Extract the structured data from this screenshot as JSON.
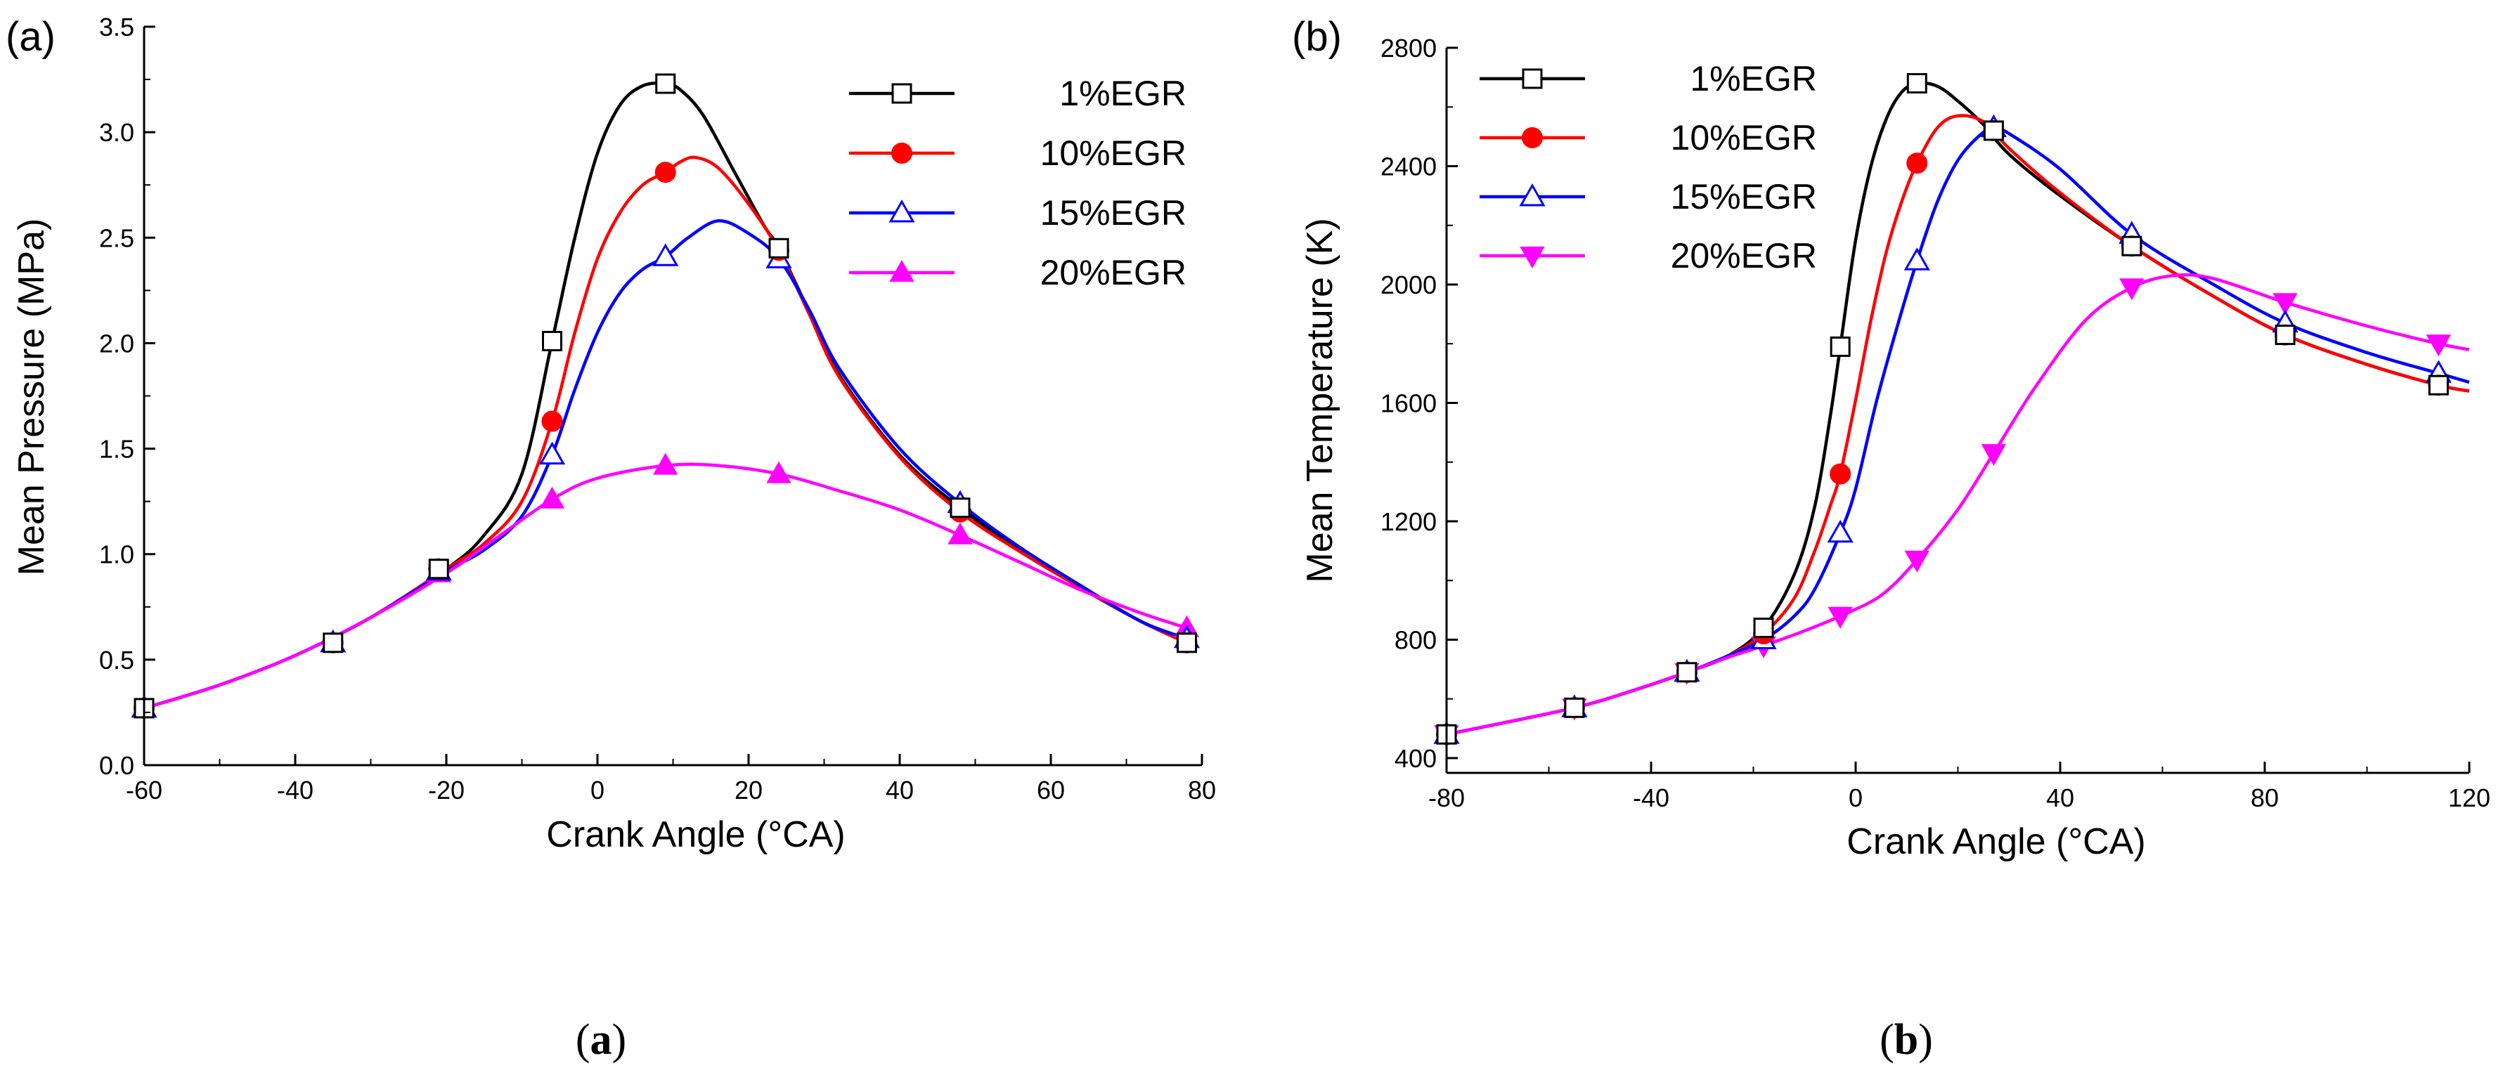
{
  "chart_data": [
    {
      "type": "line",
      "panel_label": "(a)",
      "caption_open": "(",
      "caption_letter": "a",
      "caption_close": ")",
      "xlabel": "Crank Angle (°CA)",
      "ylabel": "Mean Pressure (MPa)",
      "xlim": [
        -60,
        80
      ],
      "ylim": [
        0.0,
        3.5
      ],
      "xticks": [
        "-60",
        "-40",
        "-20",
        "0",
        "20",
        "40",
        "60",
        "80"
      ],
      "yticks": [
        "0.0",
        "0.5",
        "1.0",
        "1.5",
        "2.0",
        "2.5",
        "3.0",
        "3.5"
      ],
      "legend_position": "top-right",
      "series": [
        {
          "name": "1%EGR",
          "color": "#000000",
          "marker": "open-square",
          "x": [
            -60,
            -50,
            -40,
            -30,
            -20,
            -15,
            -10,
            -6,
            -3,
            0,
            3,
            6,
            9,
            11,
            14,
            18,
            22,
            24,
            28,
            32,
            40,
            48,
            56,
            64,
            72,
            78
          ],
          "y": [
            0.27,
            0.38,
            0.52,
            0.7,
            0.93,
            1.09,
            1.38,
            2.01,
            2.5,
            2.9,
            3.13,
            3.22,
            3.23,
            3.2,
            3.08,
            2.82,
            2.56,
            2.45,
            2.15,
            1.85,
            1.47,
            1.22,
            1.02,
            0.84,
            0.68,
            0.58
          ],
          "markers_x": [
            -60,
            -35,
            -21,
            -6,
            9,
            24,
            48,
            78
          ],
          "markers_y": [
            0.27,
            0.58,
            0.93,
            2.01,
            3.23,
            2.45,
            1.22,
            0.58
          ]
        },
        {
          "name": "10%EGR",
          "color": "#ff0000",
          "marker": "filled-circle",
          "x": [
            -60,
            -50,
            -40,
            -30,
            -20,
            -15,
            -10,
            -6,
            -3,
            0,
            3,
            6,
            9,
            11,
            13,
            16,
            20,
            24,
            28,
            32,
            40,
            48,
            56,
            64,
            72,
            78
          ],
          "y": [
            0.27,
            0.38,
            0.52,
            0.7,
            0.93,
            1.05,
            1.25,
            1.63,
            2.05,
            2.4,
            2.62,
            2.75,
            2.81,
            2.86,
            2.88,
            2.83,
            2.66,
            2.44,
            2.14,
            1.84,
            1.46,
            1.2,
            1.01,
            0.84,
            0.68,
            0.58
          ],
          "markers_x": [
            -60,
            -35,
            -21,
            -6,
            9,
            24,
            48,
            78
          ],
          "markers_y": [
            0.27,
            0.58,
            0.93,
            1.63,
            2.81,
            2.44,
            1.2,
            0.58
          ]
        },
        {
          "name": "15%EGR",
          "color": "#0000ff",
          "marker": "open-triangle",
          "x": [
            -60,
            -50,
            -40,
            -30,
            -20,
            -15,
            -10,
            -6,
            -3,
            0,
            3,
            6,
            9,
            12,
            16,
            20,
            24,
            28,
            32,
            40,
            48,
            56,
            64,
            72,
            78
          ],
          "y": [
            0.27,
            0.38,
            0.52,
            0.7,
            0.92,
            1.02,
            1.18,
            1.47,
            1.78,
            2.05,
            2.24,
            2.35,
            2.41,
            2.5,
            2.58,
            2.52,
            2.4,
            2.16,
            1.88,
            1.5,
            1.24,
            1.03,
            0.85,
            0.68,
            0.6
          ],
          "markers_x": [
            -60,
            -35,
            -21,
            -6,
            9,
            24,
            48,
            78
          ],
          "markers_y": [
            0.27,
            0.58,
            0.92,
            1.47,
            2.41,
            2.4,
            1.24,
            0.6
          ]
        },
        {
          "name": "20%EGR",
          "color": "#ff00ff",
          "marker": "filled-triangle",
          "x": [
            -60,
            -50,
            -40,
            -30,
            -20,
            -14,
            -6,
            0,
            9,
            16,
            24,
            32,
            40,
            48,
            56,
            64,
            72,
            78
          ],
          "y": [
            0.27,
            0.38,
            0.52,
            0.7,
            0.91,
            1.06,
            1.26,
            1.36,
            1.42,
            1.42,
            1.38,
            1.3,
            1.21,
            1.09,
            0.96,
            0.83,
            0.72,
            0.65
          ],
          "markers_x": [
            -60,
            -35,
            -21,
            -6,
            9,
            24,
            48,
            78
          ],
          "markers_y": [
            0.27,
            0.58,
            0.91,
            1.26,
            1.42,
            1.38,
            1.09,
            0.65
          ]
        }
      ]
    },
    {
      "type": "line",
      "panel_label": "(b)",
      "caption_open": "(",
      "caption_letter": "b",
      "caption_close": ")",
      "xlabel": "Crank Angle (°CA)",
      "ylabel": "Mean Temperature (K)",
      "xlim": [
        -80,
        120
      ],
      "ylim": [
        350,
        2800
      ],
      "xticks": [
        "-80",
        "-40",
        "0",
        "40",
        "80",
        "120"
      ],
      "ytick_values": [
        400,
        800,
        1200,
        1600,
        2000,
        2400,
        2800
      ],
      "yticks": [
        "400",
        "800",
        "1200",
        "1600",
        "2000",
        "2400",
        "2800"
      ],
      "legend_position": "top-left",
      "series": [
        {
          "name": "1%EGR",
          "color": "#000000",
          "marker": "open-square",
          "x": [
            -80,
            -70,
            -55,
            -45,
            -33,
            -25,
            -18,
            -12,
            -8,
            -5,
            -3,
            0,
            3,
            6,
            9,
            12,
            16,
            20,
            25,
            30,
            40,
            54,
            70,
            84,
            100,
            114,
            120
          ],
          "y": [
            480,
            515,
            570,
            620,
            690,
            745,
            840,
            1020,
            1250,
            1550,
            1790,
            2150,
            2400,
            2560,
            2650,
            2680,
            2670,
            2620,
            2540,
            2440,
            2300,
            2130,
            1960,
            1830,
            1730,
            1660,
            1640
          ],
          "markers_x": [
            -80,
            -55,
            -33,
            -18,
            -3,
            12,
            27,
            54,
            84,
            114
          ],
          "markers_y": [
            480,
            570,
            690,
            840,
            1790,
            2680,
            2520,
            2130,
            1830,
            1660
          ]
        },
        {
          "name": "10%EGR",
          "color": "#ff0000",
          "marker": "filled-circle",
          "x": [
            -80,
            -70,
            -55,
            -45,
            -33,
            -25,
            -18,
            -12,
            -8,
            -5,
            -3,
            0,
            3,
            6,
            9,
            12,
            16,
            20,
            25,
            30,
            40,
            54,
            70,
            84,
            100,
            114,
            120
          ],
          "y": [
            480,
            515,
            570,
            620,
            690,
            745,
            820,
            940,
            1100,
            1250,
            1360,
            1610,
            1880,
            2110,
            2280,
            2410,
            2530,
            2570,
            2550,
            2460,
            2310,
            2130,
            1960,
            1830,
            1730,
            1660,
            1640
          ],
          "markers_x": [
            -80,
            -55,
            -33,
            -18,
            -3,
            12,
            27,
            54,
            84,
            114
          ],
          "markers_y": [
            480,
            570,
            690,
            820,
            1360,
            2410,
            2520,
            2130,
            1830,
            1660
          ]
        },
        {
          "name": "15%EGR",
          "color": "#0000ff",
          "marker": "open-triangle",
          "x": [
            -80,
            -70,
            -55,
            -45,
            -33,
            -25,
            -18,
            -12,
            -8,
            -3,
            0,
            4,
            8,
            12,
            16,
            20,
            24,
            27,
            30,
            40,
            54,
            70,
            84,
            100,
            114,
            120
          ],
          "y": [
            480,
            515,
            570,
            620,
            690,
            745,
            800,
            880,
            970,
            1160,
            1310,
            1600,
            1850,
            2080,
            2280,
            2420,
            2500,
            2530,
            2510,
            2390,
            2170,
            2000,
            1870,
            1770,
            1700,
            1670
          ],
          "markers_x": [
            -80,
            -55,
            -33,
            -18,
            -3,
            12,
            27,
            54,
            84,
            114
          ],
          "markers_y": [
            480,
            570,
            690,
            800,
            1160,
            2080,
            2530,
            2170,
            1870,
            1700
          ]
        },
        {
          "name": "20%EGR",
          "color": "#ff00ff",
          "marker": "filled-triangle-down",
          "x": [
            -80,
            -70,
            -55,
            -45,
            -33,
            -25,
            -18,
            -10,
            -3,
            5,
            12,
            20,
            27,
            35,
            45,
            54,
            62,
            70,
            84,
            100,
            114,
            120
          ],
          "y": [
            480,
            515,
            570,
            620,
            690,
            740,
            780,
            830,
            880,
            950,
            1070,
            1240,
            1430,
            1650,
            1880,
            1990,
            2030,
            2020,
            1940,
            1860,
            1800,
            1780
          ],
          "markers_x": [
            -80,
            -55,
            -33,
            -18,
            -3,
            12,
            27,
            54,
            84,
            114
          ],
          "markers_y": [
            480,
            570,
            690,
            780,
            880,
            1070,
            1430,
            1990,
            1940,
            1800
          ]
        }
      ]
    }
  ]
}
